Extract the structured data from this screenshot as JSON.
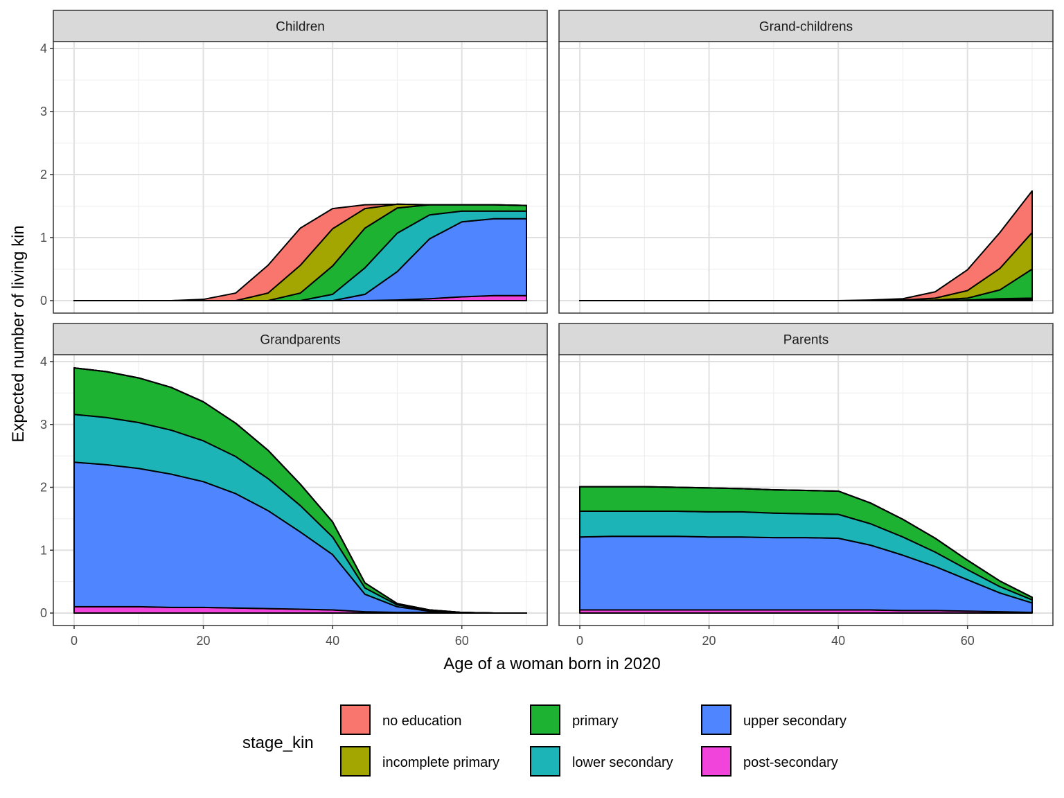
{
  "chart_data": {
    "type": "area",
    "stacked": true,
    "layout": "facet-grid-2x2",
    "xlabel": "Age of a woman born in 2020",
    "ylabel": "Expected number of living kin",
    "xlim": [
      0,
      70
    ],
    "ylim": [
      0,
      4
    ],
    "x_ticks": [
      0,
      20,
      40,
      60
    ],
    "y_ticks": [
      0,
      1,
      2,
      3,
      4
    ],
    "grid": true,
    "x": [
      0,
      5,
      10,
      15,
      20,
      25,
      30,
      35,
      40,
      45,
      50,
      55,
      60,
      65,
      70
    ],
    "legend": {
      "title": "stage_kin",
      "position": "bottom",
      "entries": [
        {
          "label": "no education",
          "color": "#F8766D"
        },
        {
          "label": "incomplete primary",
          "color": "#A3A500"
        },
        {
          "label": "primary",
          "color": "#1EB233"
        },
        {
          "label": "lower secondary",
          "color": "#1DB4B8"
        },
        {
          "label": "upper secondary",
          "color": "#4F86FF"
        },
        {
          "label": "post-secondary",
          "color": "#F044DA"
        }
      ]
    },
    "series_order_bottom_to_top": [
      "post-secondary",
      "upper secondary",
      "lower secondary",
      "primary",
      "incomplete primary",
      "no education"
    ],
    "panels": [
      {
        "title": "Children",
        "series": [
          {
            "name": "post-secondary",
            "values": [
              0,
              0,
              0,
              0,
              0,
              0,
              0,
              0,
              0,
              0,
              0.01,
              0.03,
              0.06,
              0.08,
              0.08
            ]
          },
          {
            "name": "upper secondary",
            "values": [
              0,
              0,
              0,
              0,
              0,
              0,
              0,
              0,
              0,
              0.1,
              0.45,
              0.95,
              1.19,
              1.22,
              1.22
            ]
          },
          {
            "name": "lower secondary",
            "values": [
              0,
              0,
              0,
              0,
              0,
              0,
              0,
              0,
              0.1,
              0.42,
              0.61,
              0.38,
              0.17,
              0.12,
              0.12
            ]
          },
          {
            "name": "primary",
            "values": [
              0,
              0,
              0,
              0,
              0,
              0,
              0,
              0.12,
              0.45,
              0.63,
              0.4,
              0.16,
              0.1,
              0.1,
              0.09
            ]
          },
          {
            "name": "incomplete primary",
            "values": [
              0,
              0,
              0,
              0,
              0,
              0,
              0.12,
              0.44,
              0.59,
              0.31,
              0.06,
              0,
              0,
              0,
              0
            ]
          },
          {
            "name": "no education",
            "values": [
              0,
              0,
              0,
              0,
              0.02,
              0.12,
              0.44,
              0.59,
              0.32,
              0.06,
              0,
              0,
              0,
              0,
              0
            ]
          }
        ]
      },
      {
        "title": "Grand-childrens",
        "series": [
          {
            "name": "post-secondary",
            "values": [
              0,
              0,
              0,
              0,
              0,
              0,
              0,
              0,
              0,
              0,
              0,
              0,
              0,
              0.01,
              0.01
            ]
          },
          {
            "name": "upper secondary",
            "values": [
              0,
              0,
              0,
              0,
              0,
              0,
              0,
              0,
              0,
              0,
              0,
              0,
              0.01,
              0.01,
              0.01
            ]
          },
          {
            "name": "lower secondary",
            "values": [
              0,
              0,
              0,
              0,
              0,
              0,
              0,
              0,
              0,
              0,
              0,
              0,
              0,
              0.01,
              0.02
            ]
          },
          {
            "name": "primary",
            "values": [
              0,
              0,
              0,
              0,
              0,
              0,
              0,
              0,
              0,
              0,
              0,
              0.01,
              0.03,
              0.14,
              0.46
            ]
          },
          {
            "name": "incomplete primary",
            "values": [
              0,
              0,
              0,
              0,
              0,
              0,
              0,
              0,
              0,
              0,
              0.01,
              0.03,
              0.12,
              0.34,
              0.58
            ]
          },
          {
            "name": "no education",
            "values": [
              0,
              0,
              0,
              0,
              0,
              0,
              0,
              0,
              0,
              0.01,
              0.02,
              0.1,
              0.33,
              0.57,
              0.66
            ]
          }
        ]
      },
      {
        "title": "Grandparents",
        "series": [
          {
            "name": "post-secondary",
            "values": [
              0.1,
              0.1,
              0.1,
              0.09,
              0.09,
              0.08,
              0.07,
              0.06,
              0.05,
              0.02,
              0.01,
              0.01,
              0,
              0,
              0
            ]
          },
          {
            "name": "upper secondary",
            "values": [
              2.3,
              2.26,
              2.2,
              2.12,
              2.0,
              1.82,
              1.56,
              1.23,
              0.88,
              0.28,
              0.09,
              0.02,
              0.01,
              0,
              0
            ]
          },
          {
            "name": "lower secondary",
            "values": [
              0.76,
              0.75,
              0.73,
              0.7,
              0.65,
              0.59,
              0.51,
              0.42,
              0.28,
              0.1,
              0.03,
              0.01,
              0,
              0,
              0
            ]
          },
          {
            "name": "primary",
            "values": [
              0.74,
              0.73,
              0.71,
              0.68,
              0.62,
              0.53,
              0.45,
              0.34,
              0.24,
              0.08,
              0.02,
              0.01,
              0,
              0,
              0
            ]
          },
          {
            "name": "incomplete primary",
            "values": [
              0,
              0,
              0,
              0,
              0,
              0,
              0,
              0,
              0,
              0,
              0,
              0,
              0,
              0,
              0
            ]
          },
          {
            "name": "no education",
            "values": [
              0,
              0,
              0,
              0,
              0,
              0,
              0,
              0,
              0,
              0,
              0,
              0,
              0,
              0,
              0
            ]
          }
        ]
      },
      {
        "title": "Parents",
        "series": [
          {
            "name": "post-secondary",
            "values": [
              0.05,
              0.05,
              0.05,
              0.05,
              0.05,
              0.05,
              0.05,
              0.05,
              0.05,
              0.05,
              0.04,
              0.04,
              0.03,
              0.02,
              0.01
            ]
          },
          {
            "name": "upper secondary",
            "values": [
              1.16,
              1.17,
              1.17,
              1.17,
              1.16,
              1.16,
              1.15,
              1.15,
              1.14,
              1.03,
              0.88,
              0.7,
              0.5,
              0.3,
              0.15
            ]
          },
          {
            "name": "lower secondary",
            "values": [
              0.41,
              0.4,
              0.4,
              0.4,
              0.4,
              0.4,
              0.39,
              0.38,
              0.38,
              0.34,
              0.29,
              0.23,
              0.16,
              0.1,
              0.05
            ]
          },
          {
            "name": "primary",
            "values": [
              0.39,
              0.39,
              0.39,
              0.38,
              0.38,
              0.37,
              0.37,
              0.37,
              0.37,
              0.33,
              0.28,
              0.22,
              0.15,
              0.09,
              0.04
            ]
          },
          {
            "name": "incomplete primary",
            "values": [
              0,
              0,
              0,
              0,
              0,
              0,
              0,
              0,
              0,
              0,
              0,
              0,
              0,
              0,
              0
            ]
          },
          {
            "name": "no education",
            "values": [
              0,
              0,
              0,
              0,
              0,
              0,
              0,
              0,
              0,
              0,
              0,
              0,
              0,
              0,
              0
            ]
          }
        ]
      }
    ]
  }
}
